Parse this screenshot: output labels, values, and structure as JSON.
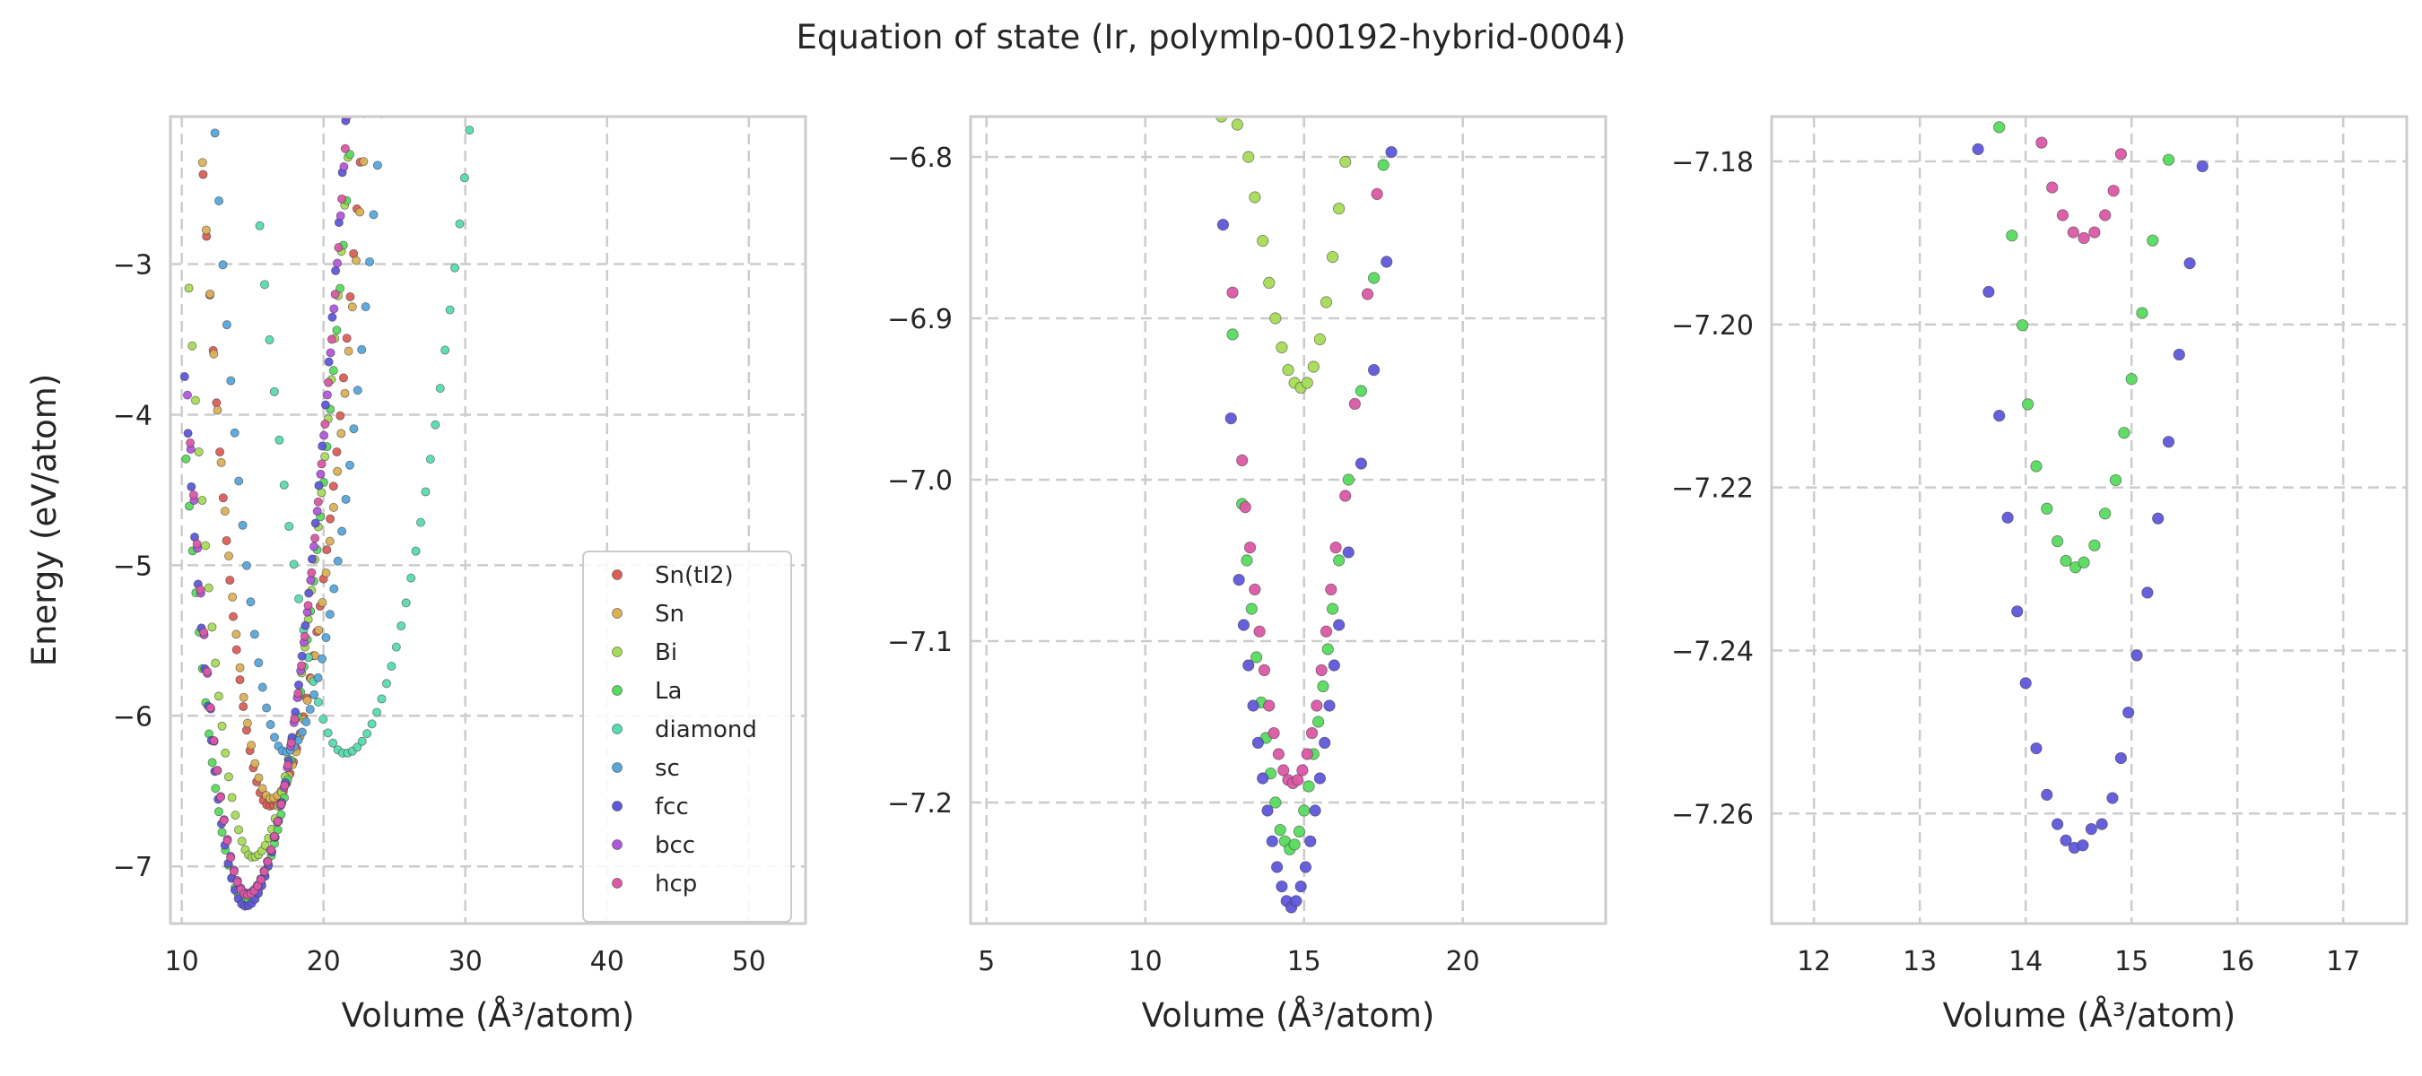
{
  "figure_title": "Equation of state (Ir, polymlp-00192-hybrid-0004)",
  "chart_data": [
    {
      "type": "scatter",
      "panel": "overview",
      "xlabel": "Volume (Å³/atom)",
      "ylabel": "Energy (eV/atom)",
      "xlim": [
        9.2,
        54.0
      ],
      "ylim": [
        -7.38,
        -2.02
      ],
      "xticks": [
        10,
        20,
        30,
        40,
        50
      ],
      "yticks": [
        -7,
        -6,
        -5,
        -4,
        -3
      ],
      "grid": true,
      "legend": {
        "placement": "lower-right"
      },
      "series": [
        {
          "name": "Sn(tI2)",
          "color": "#db5f57",
          "model": {
            "e0": -6.6,
            "v0": 16.2,
            "b": 0.005,
            "vmin": 10.8,
            "vmax": 36.5
          }
        },
        {
          "name": "Sn",
          "color": "#dbb157",
          "model": {
            "e0": -6.55,
            "v0": 16.3,
            "b": 0.0048,
            "vmin": 11.2,
            "vmax": 40.0
          }
        },
        {
          "name": "Bi",
          "color": "#a7db57",
          "model": {
            "e0": -6.94,
            "v0": 15.0,
            "b": 0.0042,
            "vmin": 10.5,
            "vmax": 36.0
          }
        },
        {
          "name": "La",
          "color": "#57db5f",
          "model": {
            "e0": -7.23,
            "v0": 14.5,
            "b": 0.0035,
            "vmin": 10.3,
            "vmax": 35.5
          }
        },
        {
          "name": "diamond",
          "color": "#57dbb1",
          "model": {
            "e0": -6.25,
            "v0": 21.5,
            "b": 0.0045,
            "vmin": 15.5,
            "vmax": 53.0
          }
        },
        {
          "name": "sc",
          "color": "#57a7db",
          "model": {
            "e0": -6.24,
            "v0": 17.3,
            "b": 0.005,
            "vmin": 11.5,
            "vmax": 42.0
          }
        },
        {
          "name": "fcc",
          "color": "#5f57db",
          "model": {
            "e0": -7.265,
            "v0": 14.5,
            "b": 0.004,
            "vmin": 10.2,
            "vmax": 36.0
          }
        },
        {
          "name": "bcc",
          "color": "#b157db",
          "model": {
            "e0": -7.18,
            "v0": 14.6,
            "b": 0.004,
            "vmin": 10.4,
            "vmax": 36.0
          }
        },
        {
          "name": "hcp",
          "color": "#db57a7",
          "model": {
            "e0": -7.19,
            "v0": 14.6,
            "b": 0.004,
            "vmin": 10.6,
            "vmax": 36.5
          }
        }
      ]
    },
    {
      "type": "scatter",
      "panel": "zoom-1",
      "xlabel": "Volume (Å³/atom)",
      "ylabel": "",
      "xlim": [
        4.5,
        24.5
      ],
      "ylim": [
        -7.275,
        -6.775
      ],
      "xticks": [
        5,
        10,
        15,
        20
      ],
      "yticks": [
        -7.2,
        -7.1,
        -7.0,
        -6.9,
        -6.8
      ],
      "grid": true,
      "series": [
        {
          "name": "Bi",
          "color": "#a7db57",
          "points": [
            [
              12.4,
              -6.775
            ],
            [
              12.9,
              -6.78
            ],
            [
              13.25,
              -6.8
            ],
            [
              13.45,
              -6.825
            ],
            [
              13.7,
              -6.852
            ],
            [
              13.9,
              -6.878
            ],
            [
              14.1,
              -6.9
            ],
            [
              14.3,
              -6.918
            ],
            [
              14.5,
              -6.932
            ],
            [
              14.7,
              -6.94
            ],
            [
              14.9,
              -6.943
            ],
            [
              15.1,
              -6.94
            ],
            [
              15.3,
              -6.93
            ],
            [
              15.5,
              -6.913
            ],
            [
              15.7,
              -6.89
            ],
            [
              15.9,
              -6.862
            ],
            [
              16.1,
              -6.832
            ],
            [
              16.3,
              -6.803
            ]
          ]
        },
        {
          "name": "La",
          "color": "#57db5f",
          "points": [
            [
              12.75,
              -6.91
            ],
            [
              13.05,
              -7.015
            ],
            [
              13.2,
              -7.05
            ],
            [
              13.35,
              -7.08
            ],
            [
              13.5,
              -7.11
            ],
            [
              13.65,
              -7.138
            ],
            [
              13.8,
              -7.16
            ],
            [
              13.95,
              -7.182
            ],
            [
              14.1,
              -7.2
            ],
            [
              14.25,
              -7.217
            ],
            [
              14.4,
              -7.224
            ],
            [
              14.55,
              -7.229
            ],
            [
              14.7,
              -7.226
            ],
            [
              14.85,
              -7.218
            ],
            [
              15.0,
              -7.205
            ],
            [
              15.15,
              -7.19
            ],
            [
              15.3,
              -7.17
            ],
            [
              15.45,
              -7.15
            ],
            [
              15.6,
              -7.128
            ],
            [
              15.75,
              -7.105
            ],
            [
              15.9,
              -7.08
            ],
            [
              16.1,
              -7.05
            ],
            [
              16.4,
              -7.0
            ],
            [
              16.8,
              -6.945
            ],
            [
              17.2,
              -6.875
            ],
            [
              17.5,
              -6.805
            ]
          ]
        },
        {
          "name": "fcc",
          "color": "#5f57db",
          "points": [
            [
              12.45,
              -6.842
            ],
            [
              12.7,
              -6.962
            ],
            [
              12.95,
              -7.062
            ],
            [
              13.1,
              -7.09
            ],
            [
              13.25,
              -7.115
            ],
            [
              13.4,
              -7.14
            ],
            [
              13.55,
              -7.163
            ],
            [
              13.7,
              -7.185
            ],
            [
              13.85,
              -7.205
            ],
            [
              14.0,
              -7.224
            ],
            [
              14.15,
              -7.24
            ],
            [
              14.3,
              -7.252
            ],
            [
              14.45,
              -7.261
            ],
            [
              14.6,
              -7.265
            ],
            [
              14.75,
              -7.261
            ],
            [
              14.9,
              -7.252
            ],
            [
              15.05,
              -7.24
            ],
            [
              15.2,
              -7.224
            ],
            [
              15.35,
              -7.205
            ],
            [
              15.5,
              -7.185
            ],
            [
              15.65,
              -7.163
            ],
            [
              15.8,
              -7.14
            ],
            [
              15.95,
              -7.115
            ],
            [
              16.1,
              -7.09
            ],
            [
              16.4,
              -7.045
            ],
            [
              16.8,
              -6.99
            ],
            [
              17.2,
              -6.932
            ],
            [
              17.6,
              -6.865
            ],
            [
              17.75,
              -6.797
            ]
          ]
        },
        {
          "name": "hcp",
          "color": "#db57a7",
          "points": [
            [
              12.75,
              -6.884
            ],
            [
              13.05,
              -6.988
            ],
            [
              13.15,
              -7.017
            ],
            [
              13.3,
              -7.042
            ],
            [
              13.45,
              -7.068
            ],
            [
              13.6,
              -7.094
            ],
            [
              13.75,
              -7.118
            ],
            [
              13.9,
              -7.14
            ],
            [
              14.05,
              -7.157
            ],
            [
              14.2,
              -7.17
            ],
            [
              14.35,
              -7.18
            ],
            [
              14.5,
              -7.186
            ],
            [
              14.65,
              -7.188
            ],
            [
              14.8,
              -7.186
            ],
            [
              14.95,
              -7.18
            ],
            [
              15.1,
              -7.17
            ],
            [
              15.25,
              -7.157
            ],
            [
              15.4,
              -7.14
            ],
            [
              15.55,
              -7.118
            ],
            [
              15.7,
              -7.094
            ],
            [
              15.85,
              -7.068
            ],
            [
              16.0,
              -7.042
            ],
            [
              16.3,
              -7.01
            ],
            [
              16.6,
              -6.953
            ],
            [
              17.0,
              -6.885
            ],
            [
              17.3,
              -6.823
            ]
          ]
        }
      ]
    },
    {
      "type": "scatter",
      "panel": "zoom-2",
      "xlabel": "Volume (Å³/atom)",
      "ylabel": "",
      "xlim": [
        11.6,
        17.6
      ],
      "ylim": [
        -7.2735,
        -7.1745
      ],
      "xticks": [
        12,
        13,
        14,
        15,
        16,
        17
      ],
      "yticks": [
        -7.26,
        -7.24,
        -7.22,
        -7.2,
        -7.18
      ],
      "grid": true,
      "series": [
        {
          "name": "fcc",
          "color": "#5f57db",
          "points": [
            [
              13.55,
              -7.1785
            ],
            [
              13.65,
              -7.196
            ],
            [
              13.75,
              -7.2112
            ],
            [
              13.83,
              -7.2237
            ],
            [
              13.92,
              -7.2352
            ],
            [
              14.0,
              -7.244
            ],
            [
              14.1,
              -7.252
            ],
            [
              14.2,
              -7.2577
            ],
            [
              14.3,
              -7.2613
            ],
            [
              14.38,
              -7.2633
            ],
            [
              14.46,
              -7.2642
            ],
            [
              14.54,
              -7.2639
            ],
            [
              14.62,
              -7.2619
            ],
            [
              14.72,
              -7.2613
            ],
            [
              14.82,
              -7.2581
            ],
            [
              14.9,
              -7.2532
            ],
            [
              14.97,
              -7.2476
            ],
            [
              15.05,
              -7.2406
            ],
            [
              15.15,
              -7.2329
            ],
            [
              15.25,
              -7.2238
            ],
            [
              15.35,
              -7.2144
            ],
            [
              15.45,
              -7.2037
            ],
            [
              15.55,
              -7.1925
            ],
            [
              15.67,
              -7.1806
            ]
          ]
        },
        {
          "name": "La",
          "color": "#57db5f",
          "points": [
            [
              13.75,
              -7.1758
            ],
            [
              13.87,
              -7.1891
            ],
            [
              13.97,
              -7.2001
            ],
            [
              14.02,
              -7.2098
            ],
            [
              14.1,
              -7.2174
            ],
            [
              14.2,
              -7.2226
            ],
            [
              14.3,
              -7.2266
            ],
            [
              14.38,
              -7.229
            ],
            [
              14.47,
              -7.2298
            ],
            [
              14.55,
              -7.2292
            ],
            [
              14.65,
              -7.2271
            ],
            [
              14.75,
              -7.2232
            ],
            [
              14.85,
              -7.2191
            ],
            [
              14.93,
              -7.2133
            ],
            [
              15.0,
              -7.2067
            ],
            [
              15.1,
              -7.1986
            ],
            [
              15.2,
              -7.1897
            ],
            [
              15.35,
              -7.1798
            ]
          ]
        },
        {
          "name": "hcp",
          "color": "#db57a7",
          "points": [
            [
              14.15,
              -7.1777
            ],
            [
              14.25,
              -7.1832
            ],
            [
              14.35,
              -7.1866
            ],
            [
              14.45,
              -7.1887
            ],
            [
              14.55,
              -7.1894
            ],
            [
              14.65,
              -7.1887
            ],
            [
              14.75,
              -7.1866
            ],
            [
              14.83,
              -7.1836
            ],
            [
              14.9,
              -7.1791
            ]
          ]
        }
      ]
    }
  ]
}
